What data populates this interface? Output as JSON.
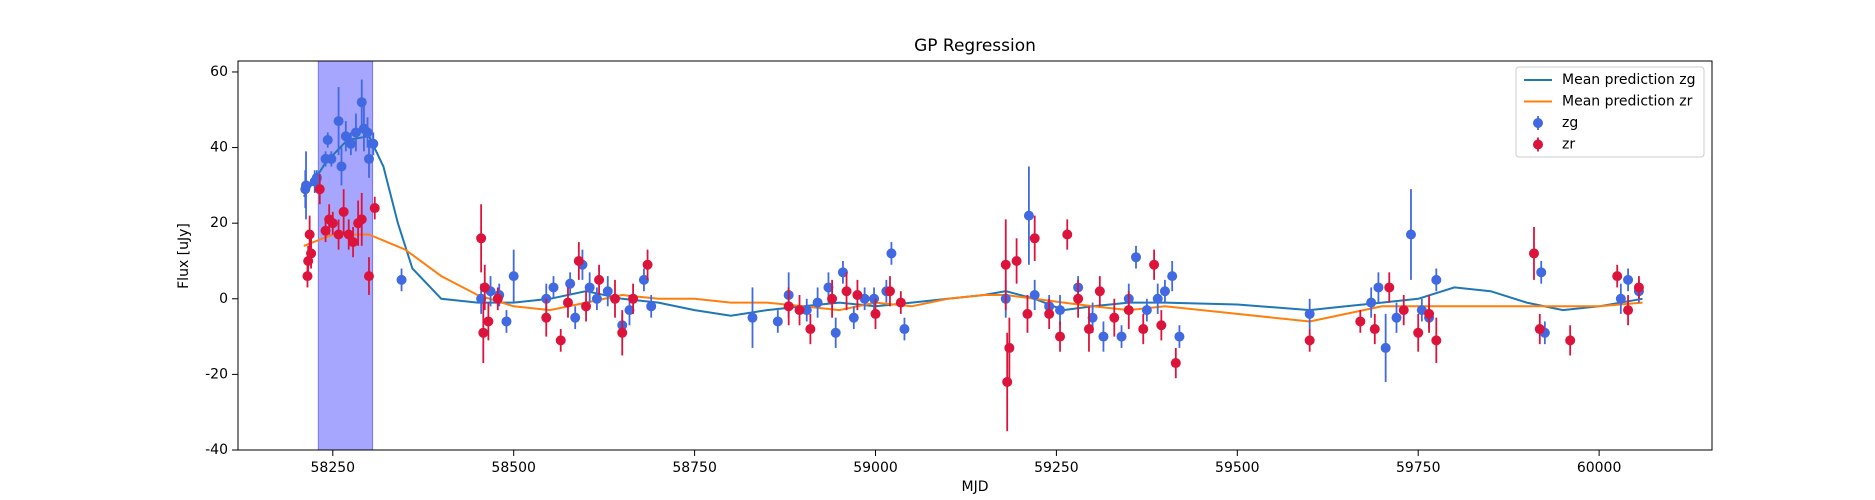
{
  "chart_data": {
    "type": "line",
    "title": "GP Regression",
    "xlabel": "MJD",
    "ylabel": "Flux [uJy]",
    "xlim": [
      58119,
      60156
    ],
    "ylim": [
      -40,
      62.9
    ],
    "xticks": [
      58250,
      58500,
      58750,
      59000,
      59250,
      59500,
      59750,
      60000
    ],
    "yticks": [
      -40,
      -20,
      0,
      20,
      40,
      60
    ],
    "legend": "upper right",
    "shaded_span": {
      "range": [
        58230,
        58305
      ],
      "color": "#a6a6ff"
    },
    "series": [
      {
        "name": "Mean prediction zg",
        "kind": "line",
        "color": "#1f77b4",
        "x": [
          58210,
          58240,
          58270,
          58300,
          58320,
          58340,
          58360,
          58400,
          58450,
          58500,
          58550,
          58600,
          58650,
          58700,
          58750,
          58800,
          58850,
          58900,
          58950,
          59000,
          59050,
          59100,
          59150,
          59180,
          59220,
          59260,
          59300,
          59350,
          59400,
          59500,
          59600,
          59650,
          59700,
          59750,
          59800,
          59850,
          59900,
          59950,
          60000,
          60060
        ],
        "values": [
          27,
          36,
          42,
          43,
          35,
          20,
          8,
          0,
          -1,
          -1,
          0,
          2,
          0,
          -1,
          -3,
          -4.5,
          -3,
          -2,
          -1,
          -2,
          -1,
          0,
          1,
          2,
          0,
          -3,
          -2,
          -1,
          -1,
          -1.5,
          -3,
          -2,
          -1,
          0,
          3,
          2,
          -1,
          -3,
          -2,
          0
        ]
      },
      {
        "name": "Mean prediction zr",
        "kind": "line",
        "color": "#ff7f0e",
        "x": [
          58210,
          58250,
          58300,
          58350,
          58400,
          58450,
          58500,
          58550,
          58600,
          58650,
          58700,
          58750,
          58800,
          58850,
          58900,
          58950,
          59000,
          59050,
          59100,
          59150,
          59180,
          59220,
          59260,
          59300,
          59350,
          59400,
          59500,
          59600,
          59650,
          59700,
          59750,
          59800,
          59900,
          59950,
          60000,
          60060
        ],
        "values": [
          14,
          17,
          17,
          13,
          6,
          1,
          -2,
          -3,
          -1,
          1,
          0,
          0,
          -1,
          -1,
          -2,
          -3,
          -1,
          -2,
          0,
          1,
          1,
          0,
          -1,
          -2,
          -3,
          -2,
          -4,
          -6,
          -4,
          -2,
          -2,
          -2,
          -2,
          -2,
          -2,
          -1
        ]
      },
      {
        "name": "zg",
        "kind": "errorbar",
        "color": "#4169e1",
        "x": [
          58212,
          58213,
          58225,
          58228,
          58240,
          58243,
          58248,
          58258,
          58262,
          58268,
          58275,
          58282,
          58290,
          58293,
          58298,
          58300,
          58306,
          58345,
          58455,
          58468,
          58480,
          58490,
          58500,
          58545,
          58555,
          58578,
          58585,
          58595,
          58605,
          58615,
          58630,
          58650,
          58660,
          58680,
          58690,
          58830,
          58865,
          58880,
          58905,
          58920,
          58935,
          58945,
          58955,
          58970,
          58985,
          58998,
          59015,
          59022,
          59040,
          59180,
          59212,
          59220,
          59240,
          59255,
          59280,
          59300,
          59315,
          59340,
          59350,
          59360,
          59375,
          59390,
          59400,
          59410,
          59420,
          59600,
          59685,
          59695,
          59705,
          59720,
          59740,
          59755,
          59765,
          59775,
          59920,
          59925,
          60030,
          60040,
          60055
        ],
        "values": [
          29,
          30,
          31,
          32,
          37,
          42,
          37,
          47,
          35,
          43,
          41,
          44,
          52,
          45,
          44,
          37,
          41,
          5,
          0,
          2,
          1,
          -6,
          6,
          0,
          3,
          4,
          -5,
          9,
          3,
          0,
          2,
          -7,
          -3,
          5,
          -2,
          -5,
          -6,
          1,
          -3,
          -1,
          3,
          -9,
          7,
          -5,
          0,
          0,
          2,
          12,
          -8,
          0,
          22,
          1,
          -2,
          -3,
          3,
          -5,
          -10,
          -10,
          0,
          11,
          -3,
          0,
          2,
          6,
          -10,
          -4,
          -1,
          3,
          -13,
          -5,
          17,
          -3,
          -5,
          5,
          7,
          -9,
          0,
          5,
          2
        ],
        "errors": [
          5,
          9,
          3,
          2,
          2,
          2,
          2,
          9,
          5,
          4,
          3,
          5,
          6,
          6,
          4,
          5,
          3,
          3,
          4,
          4,
          3,
          3,
          7,
          4,
          3,
          3,
          3,
          4,
          4,
          3,
          4,
          3,
          4,
          3,
          3,
          8,
          3,
          6,
          3,
          4,
          4,
          4,
          3,
          3,
          3,
          3,
          3,
          3,
          3,
          5,
          13,
          4,
          3,
          4,
          3,
          4,
          4,
          3,
          4,
          3,
          3,
          4,
          3,
          4,
          3,
          4,
          4,
          4,
          9,
          4,
          12,
          3,
          3,
          3,
          3,
          3,
          4,
          3,
          3
        ]
      },
      {
        "name": "zr",
        "kind": "errorbar",
        "color": "#dc143c",
        "x": [
          58215,
          58216,
          58218,
          58220,
          58232,
          58240,
          58245,
          58250,
          58258,
          58265,
          58272,
          58278,
          58285,
          58290,
          58300,
          58308,
          58455,
          58458,
          58460,
          58465,
          58478,
          58545,
          58565,
          58575,
          58590,
          58600,
          58618,
          58640,
          58650,
          58665,
          58685,
          58880,
          58895,
          58910,
          58940,
          58960,
          58975,
          59000,
          59020,
          59035,
          59180,
          59182,
          59185,
          59195,
          59210,
          59220,
          59240,
          59255,
          59265,
          59280,
          59295,
          59310,
          59330,
          59350,
          59370,
          59385,
          59395,
          59415,
          59600,
          59670,
          59690,
          59710,
          59730,
          59750,
          59765,
          59775,
          59910,
          59918,
          59960,
          60025,
          60040,
          60055
        ],
        "values": [
          6,
          10,
          17,
          12,
          29,
          18,
          21,
          20,
          17,
          23,
          17,
          15,
          20,
          21,
          6,
          24,
          16,
          -9,
          3,
          -6,
          0,
          -5,
          -11,
          -1,
          10,
          -2,
          5,
          0,
          -9,
          0,
          9,
          -2,
          -3,
          -8,
          0,
          2,
          1,
          -4,
          2,
          -1,
          9,
          -22,
          -13,
          10,
          -4,
          16,
          -4,
          -10,
          17,
          0,
          -8,
          2,
          -5,
          -3,
          -8,
          9,
          -7,
          -17,
          -11,
          -6,
          -8,
          3,
          -3,
          -9,
          -4,
          -11,
          12,
          -8,
          -11,
          6,
          -3,
          3
        ],
        "errors": [
          3,
          4,
          5,
          4,
          4,
          3,
          4,
          3,
          4,
          6,
          4,
          4,
          6,
          7,
          5,
          3,
          9,
          8,
          6,
          5,
          3,
          5,
          3,
          4,
          5,
          4,
          4,
          5,
          6,
          4,
          4,
          5,
          4,
          4,
          5,
          5,
          4,
          4,
          4,
          3,
          12,
          13,
          8,
          6,
          5,
          6,
          4,
          4,
          4,
          5,
          6,
          4,
          5,
          5,
          4,
          4,
          4,
          4,
          3,
          3,
          4,
          4,
          4,
          5,
          5,
          6,
          7,
          4,
          4,
          3,
          4,
          3
        ]
      }
    ]
  }
}
